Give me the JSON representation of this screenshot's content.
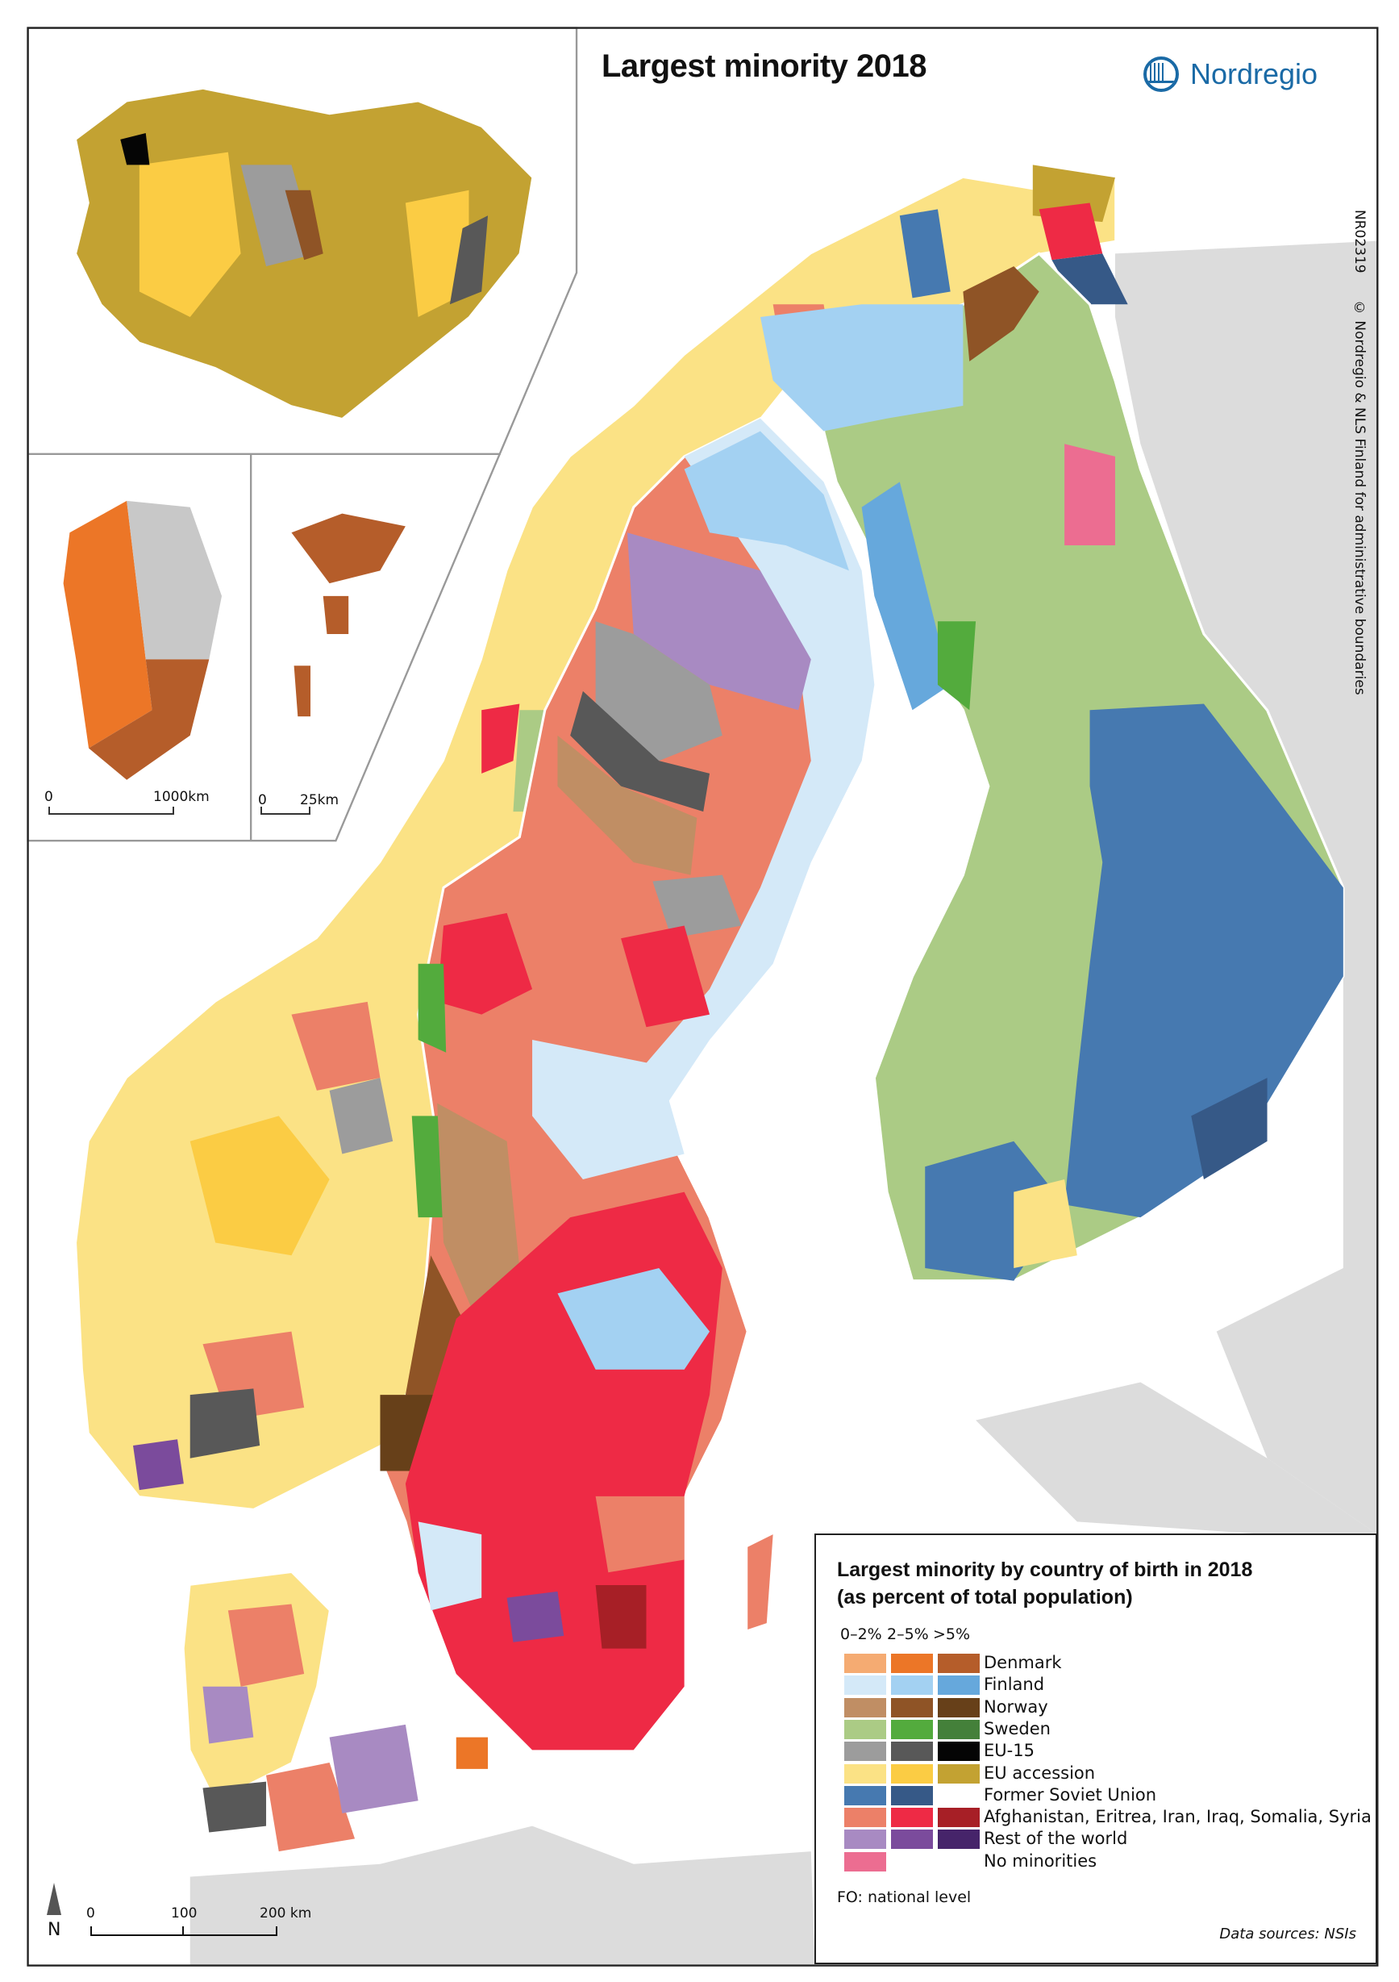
{
  "title": "Largest minority 2018",
  "logo": {
    "text": "Nordregio",
    "color": "#1a6aa6"
  },
  "credits": {
    "map_id": "NR02319",
    "copyright": "© Nordregio & NLS Finland for administrative boundaries"
  },
  "legend": {
    "title_line1": "Largest minority by country of birth in 2018",
    "title_line2": "(as percent of total population)",
    "class_headers": [
      "0–2%",
      "2–5%",
      ">5%"
    ],
    "items": [
      {
        "label": "Denmark",
        "colors": [
          "#f5ab72",
          "#ec7627",
          "#b55d2a"
        ]
      },
      {
        "label": "Finland",
        "colors": [
          "#d4e9f8",
          "#a3d1f2",
          "#66a8dc"
        ]
      },
      {
        "label": "Norway",
        "colors": [
          "#c08e64",
          "#8f5426",
          "#674019"
        ]
      },
      {
        "label": "Sweden",
        "colors": [
          "#abcb85",
          "#53ab3d",
          "#44803a"
        ]
      },
      {
        "label": "EU-15",
        "colors": [
          "#9c9c9c",
          "#585858",
          "#050505"
        ]
      },
      {
        "label": "EU accession",
        "colors": [
          "#fbe285",
          "#fbcc44",
          "#c3a232"
        ]
      },
      {
        "label": "Former Soviet Union",
        "colors": [
          "#4679b0",
          "#365987"
        ]
      },
      {
        "label": "Afghanistan, Eritrea, Iran, Iraq, Somalia, Syria",
        "colors": [
          "#ec8068",
          "#ee2a45",
          "#a71f26"
        ]
      },
      {
        "label": "Rest of the world",
        "colors": [
          "#a88ac2",
          "#7b4b9c",
          "#46246a"
        ]
      },
      {
        "label": "No minorities",
        "colors": [
          "#ec6d91"
        ]
      }
    ],
    "note": "FO: national level",
    "data_sources": "Data sources: NSIs"
  },
  "scale_bars": {
    "greenland": {
      "start": "0",
      "end": "1000km"
    },
    "faroe": {
      "start": "0",
      "end": "25km"
    },
    "main": {
      "start": "0",
      "mid": "100",
      "end": "200 km"
    }
  },
  "north_arrow": {
    "label": "N"
  },
  "map_colors": {
    "background_land": "#dcdcdc",
    "frame": "#222222",
    "inset_border": "#999999"
  }
}
